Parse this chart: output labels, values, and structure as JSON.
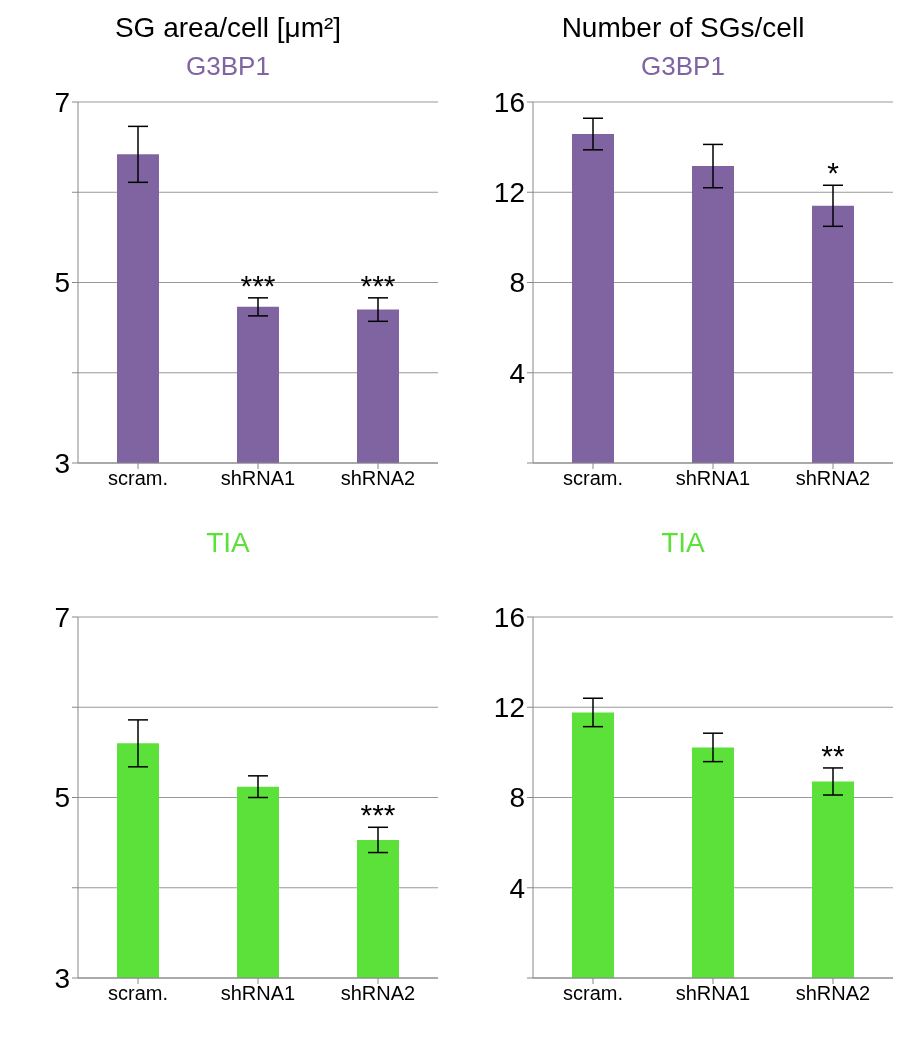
{
  "chart_data": [
    {
      "type": "bar",
      "title": "SG area/cell [μm²]",
      "subtitle": "G3BP1",
      "categories": [
        "scram.",
        "shRNA1",
        "shRNA2"
      ],
      "values": [
        6.42,
        4.73,
        4.7
      ],
      "errors": [
        0.31,
        0.1,
        0.13
      ],
      "color": "#8064a2",
      "ylim": [
        3,
        7
      ],
      "yticks": [
        3,
        {
          "value": 4,
          "label": null
        },
        5,
        {
          "value": 6,
          "label": null
        },
        7
      ],
      "grid": "y",
      "annotations": [
        {
          "text": "***",
          "x": "shRNA1",
          "y": 4.83
        },
        {
          "text": "***",
          "x": "shRNA2",
          "y": 4.83
        }
      ]
    },
    {
      "type": "bar",
      "title": "Number of SGs/cell",
      "subtitle": "G3BP1",
      "categories": [
        "scram.",
        "shRNA1",
        "shRNA2"
      ],
      "values": [
        14.58,
        13.16,
        11.4
      ],
      "errors": [
        0.7,
        0.96,
        0.91
      ],
      "color": "#8064a2",
      "ylim": [
        0,
        16
      ],
      "yticks": [
        {
          "value": 0,
          "label": null
        },
        4,
        8,
        12,
        16
      ],
      "grid": "y",
      "annotations": [
        {
          "text": "*",
          "x": "shRNA2",
          "y": 12.31
        }
      ]
    },
    {
      "type": "bar",
      "title": "TIA",
      "categories": [
        "scram.",
        "shRNA1",
        "shRNA2"
      ],
      "values": [
        5.6,
        5.12,
        4.53
      ],
      "errors": [
        0.26,
        0.12,
        0.14
      ],
      "color": "#5ce03a",
      "ylim": [
        3,
        7
      ],
      "yticks": [
        3,
        {
          "value": 4,
          "label": null
        },
        5,
        {
          "value": 6,
          "label": null
        },
        7
      ],
      "grid": "y",
      "annotations": [
        {
          "text": "***",
          "x": "shRNA2",
          "y": 4.67
        }
      ]
    },
    {
      "type": "bar",
      "title": "TIA",
      "categories": [
        "scram.",
        "shRNA1",
        "shRNA2"
      ],
      "values": [
        11.77,
        10.22,
        8.71
      ],
      "errors": [
        0.63,
        0.63,
        0.6
      ],
      "color": "#5ce03a",
      "ylim": [
        0,
        16
      ],
      "yticks": [
        {
          "value": 0,
          "label": null
        },
        4,
        8,
        12,
        16
      ],
      "grid": "y",
      "annotations": [
        {
          "text": "**",
          "x": "shRNA2",
          "y": 9.31
        }
      ]
    }
  ]
}
